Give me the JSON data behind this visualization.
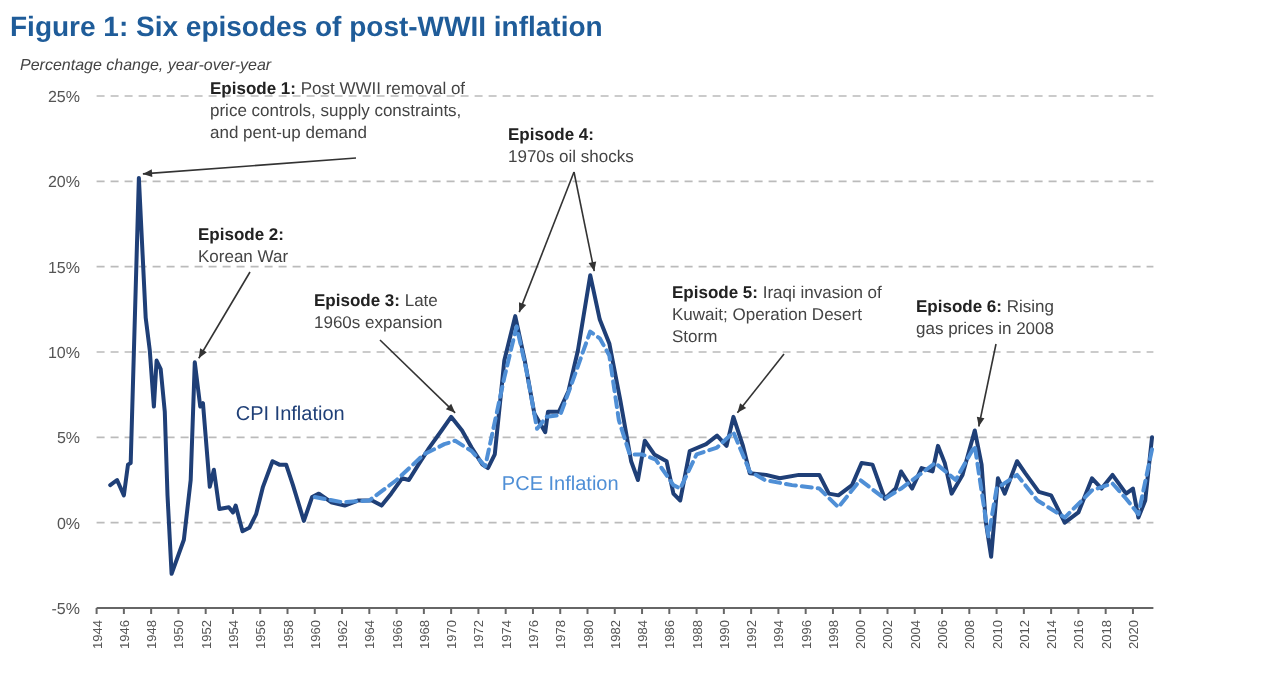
{
  "chart_data": {
    "type": "line",
    "title": "Figure 1: Six episodes of post-WWII inflation",
    "subtitle": "Percentage change, year-over-year",
    "xlim": [
      1944,
      2021.5
    ],
    "xticks": [
      1944,
      1946,
      1948,
      1950,
      1952,
      1954,
      1956,
      1958,
      1960,
      1962,
      1964,
      1966,
      1968,
      1970,
      1972,
      1974,
      1976,
      1978,
      1980,
      1982,
      1984,
      1986,
      1988,
      1990,
      1992,
      1994,
      1996,
      1998,
      2000,
      2002,
      2004,
      2006,
      2008,
      2010,
      2012,
      2014,
      2016,
      2018,
      2020
    ],
    "ylim": [
      -5,
      25
    ],
    "yticks": [
      {
        "value": -5,
        "label": "-5%"
      },
      {
        "value": 0,
        "label": "0%"
      },
      {
        "value": 5,
        "label": "5%"
      },
      {
        "value": 10,
        "label": "10%"
      },
      {
        "value": 15,
        "label": "15%"
      },
      {
        "value": 20,
        "label": "20%"
      },
      {
        "value": 25,
        "label": "25%"
      }
    ],
    "grid": "y",
    "legend": false,
    "marker": "none",
    "series": [
      {
        "name": "CPI Inflation",
        "color": "#1f3f77",
        "line_style": "solid",
        "x": [
          1945.0,
          1945.5,
          1946.0,
          1946.3,
          1946.5,
          1947.1,
          1947.6,
          1947.9,
          1948.2,
          1948.4,
          1948.7,
          1949.0,
          1949.2,
          1949.5,
          1950.4,
          1950.9,
          1951.2,
          1951.6,
          1951.8,
          1952.3,
          1952.6,
          1953.0,
          1953.7,
          1954.0,
          1954.2,
          1954.7,
          1955.2,
          1955.7,
          1956.2,
          1956.9,
          1957.4,
          1957.9,
          1958.4,
          1959.2,
          1959.8,
          1960.3,
          1961.2,
          1962.2,
          1963.2,
          1964.2,
          1964.9,
          1965.6,
          1966.4,
          1966.9,
          1967.6,
          1968.4,
          1969.3,
          1970.0,
          1970.8,
          1971.5,
          1972.3,
          1972.7,
          1973.2,
          1973.9,
          1974.7,
          1975.4,
          1976.1,
          1976.9,
          1977.1,
          1977.9,
          1978.6,
          1979.3,
          1980.2,
          1980.9,
          1981.6,
          1982.4,
          1983.2,
          1983.7,
          1984.2,
          1984.9,
          1985.8,
          1986.3,
          1986.8,
          1987.5,
          1988.7,
          1989.5,
          1990.2,
          1990.7,
          1991.4,
          1991.9,
          1993.1,
          1994.1,
          1995.5,
          1997.0,
          1997.7,
          1998.4,
          1999.4,
          2000.1,
          2000.9,
          2001.8,
          2002.6,
          2003.0,
          2003.8,
          2004.5,
          2005.3,
          2005.7,
          2006.2,
          2006.7,
          2007.5,
          2008.4,
          2008.9,
          2009.2,
          2009.6,
          2010.1,
          2010.6,
          2011.5,
          2012.1,
          2013.1,
          2014.0,
          2015.0,
          2016.0,
          2017.0,
          2017.7,
          2018.5,
          2019.5,
          2020.0,
          2020.4,
          2020.9,
          2021.4
        ],
        "values": [
          2.2,
          2.5,
          1.6,
          3.4,
          3.5,
          20.2,
          12,
          10.1,
          6.8,
          9.5,
          9.0,
          6.5,
          1.6,
          -3.0,
          -1.0,
          2.5,
          9.4,
          6.8,
          7.0,
          2.1,
          3.1,
          0.8,
          0.9,
          0.6,
          1.0,
          -0.5,
          -0.3,
          0.5,
          2.1,
          3.6,
          3.4,
          3.4,
          2.2,
          0.1,
          1.5,
          1.7,
          1.2,
          1.0,
          1.3,
          1.3,
          1.0,
          1.7,
          2.6,
          2.5,
          3.4,
          4.4,
          5.4,
          6.2,
          5.4,
          4.4,
          3.4,
          3.2,
          4.0,
          9.5,
          12.1,
          9.5,
          6.4,
          5.3,
          6.5,
          6.5,
          7.7,
          10.1,
          14.5,
          11.9,
          10.5,
          7.2,
          3.6,
          2.5,
          4.8,
          4.0,
          3.6,
          1.7,
          1.3,
          4.2,
          4.6,
          5.1,
          4.5,
          6.2,
          4.5,
          2.9,
          2.8,
          2.6,
          2.8,
          2.8,
          1.7,
          1.6,
          2.2,
          3.5,
          3.4,
          1.4,
          2.0,
          3.0,
          2.0,
          3.2,
          3.0,
          4.5,
          3.5,
          1.7,
          2.8,
          5.4,
          3.4,
          0.1,
          -2.0,
          2.6,
          1.7,
          3.6,
          2.9,
          1.8,
          1.6,
          0.0,
          0.6,
          2.6,
          2.0,
          2.8,
          1.7,
          2.0,
          0.3,
          1.3,
          5.0
        ]
      },
      {
        "name": "PCE Inflation",
        "color": "#4f8fd6",
        "line_style": "dashed",
        "x": [
          1960,
          1962,
          1964,
          1966,
          1968,
          1969.5,
          1970.3,
          1971.5,
          1972.5,
          1973.9,
          1974.8,
          1975.5,
          1976.3,
          1977,
          1978,
          1979,
          1980.2,
          1980.9,
          1981.6,
          1982.3,
          1983.1,
          1984,
          1985,
          1986.3,
          1986.8,
          1988,
          1989.5,
          1990.7,
          1991.9,
          1993,
          1995,
          1997,
          1998.4,
          2000,
          2001.8,
          2003,
          2005.5,
          2007,
          2008.4,
          2009.4,
          2010,
          2011.5,
          2013,
          2015,
          2017,
          2018.5,
          2019.5,
          2020.4,
          2021.4
        ],
        "values": [
          1.5,
          1.2,
          1.3,
          2.5,
          4.0,
          4.6,
          4.8,
          4.2,
          3.3,
          8.5,
          11.5,
          9.0,
          5.5,
          6.2,
          6.3,
          8.5,
          11.2,
          10.8,
          9.8,
          6.0,
          4.0,
          4.0,
          3.7,
          2.2,
          2.0,
          4.0,
          4.4,
          5.3,
          3.0,
          2.5,
          2.2,
          2.0,
          0.9,
          2.5,
          1.4,
          2.0,
          3.5,
          2.5,
          4.5,
          -0.8,
          2.0,
          2.8,
          1.3,
          0.3,
          1.9,
          2.3,
          1.4,
          0.5,
          4.3
        ]
      }
    ],
    "annotations": [
      {
        "text": "Episode 1: Post WWII removal of price controls, supply constraints, and pent-up demand",
        "x": 1947.1,
        "y": 20.2
      },
      {
        "text": "Episode 2: Korean War",
        "x": 1951.2,
        "y": 9.4
      },
      {
        "text": "Episode 3: Late 1960s expansion",
        "x": 1970.0,
        "y": 6.2
      },
      {
        "text": "Episode 4: 1970s oil shocks",
        "x": 1974.7,
        "y": 12.1
      },
      {
        "text": "Episode 5: Iraqi invasion of Kuwait; Operation Desert Storm",
        "x": 1990.7,
        "y": 6.2
      },
      {
        "text": "Episode 6: Rising gas prices in 2008",
        "x": 2008.4,
        "y": 5.4
      }
    ]
  }
}
